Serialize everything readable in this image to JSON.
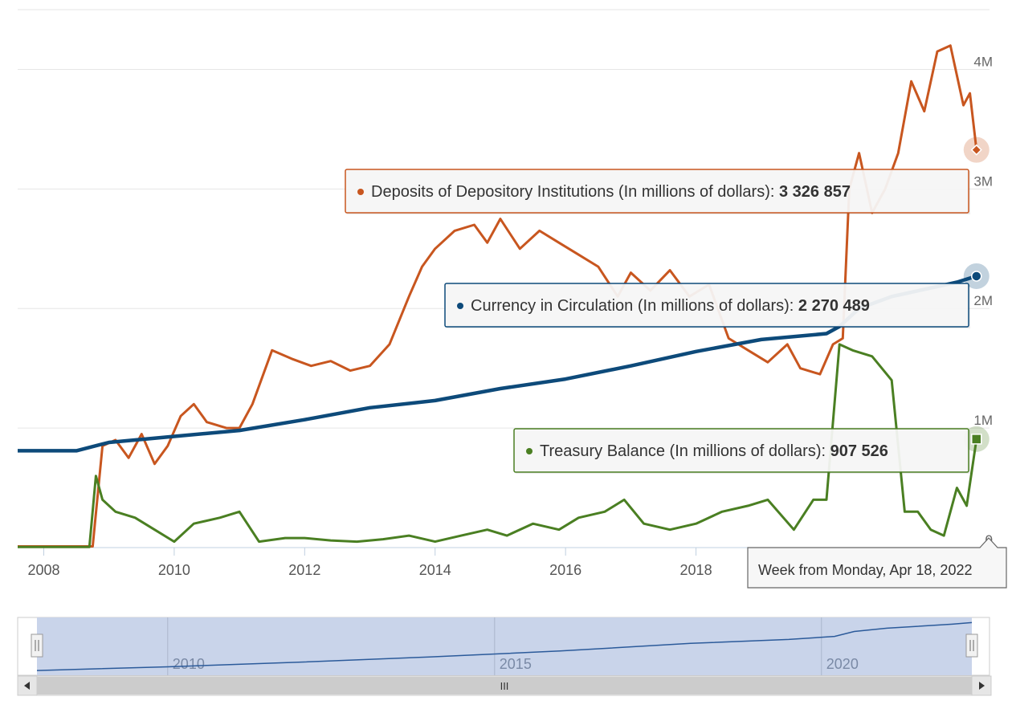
{
  "chart_data": {
    "type": "line",
    "title": "",
    "xlabel": "",
    "ylabel": "",
    "xlim": [
      2007.6,
      2022.5
    ],
    "ylim": [
      0,
      4500000
    ],
    "grid": true,
    "x_ticks": [
      "2008",
      "2010",
      "2012",
      "2014",
      "2016",
      "2018"
    ],
    "y_ticks": [
      {
        "value": 0,
        "label": "0"
      },
      {
        "value": 1000000,
        "label": "1M"
      },
      {
        "value": 2000000,
        "label": "2M"
      },
      {
        "value": 3000000,
        "label": "3M"
      },
      {
        "value": 4000000,
        "label": "4M"
      }
    ],
    "series": [
      {
        "name": "Deposits of Depository Institutions (In millions of dollars)",
        "color": "#c8561f",
        "marker": "diamond",
        "tooltip_value": "3 326 857",
        "x": [
          2007.6,
          2008.5,
          2008.75,
          2008.9,
          2009.1,
          2009.3,
          2009.5,
          2009.7,
          2009.9,
          2010.1,
          2010.3,
          2010.5,
          2010.8,
          2011.0,
          2011.2,
          2011.5,
          2011.8,
          2012.1,
          2012.4,
          2012.7,
          2013.0,
          2013.3,
          2013.6,
          2013.8,
          2014.0,
          2014.3,
          2014.6,
          2014.8,
          2015.0,
          2015.3,
          2015.6,
          2015.9,
          2016.2,
          2016.5,
          2016.8,
          2017.0,
          2017.3,
          2017.6,
          2017.9,
          2018.2,
          2018.5,
          2018.8,
          2019.1,
          2019.4,
          2019.6,
          2019.9,
          2020.1,
          2020.25,
          2020.35,
          2020.5,
          2020.7,
          2020.9,
          2021.1,
          2021.3,
          2021.5,
          2021.7,
          2021.9,
          2022.1,
          2022.2,
          2022.3
        ],
        "values": [
          10000,
          10000,
          10000,
          850000,
          900000,
          750000,
          950000,
          700000,
          850000,
          1100000,
          1200000,
          1050000,
          1000000,
          1000000,
          1200000,
          1650000,
          1580000,
          1520000,
          1560000,
          1480000,
          1520000,
          1700000,
          2100000,
          2350000,
          2500000,
          2650000,
          2700000,
          2550000,
          2750000,
          2500000,
          2650000,
          2550000,
          2450000,
          2350000,
          2100000,
          2300000,
          2150000,
          2320000,
          2100000,
          2200000,
          1750000,
          1650000,
          1550000,
          1700000,
          1500000,
          1450000,
          1700000,
          1750000,
          3000000,
          3300000,
          2800000,
          3000000,
          3300000,
          3900000,
          3650000,
          4150000,
          4200000,
          3700000,
          3800000,
          3326857
        ]
      },
      {
        "name": "Currency in Circulation (In millions of dollars)",
        "color": "#0d4a7a",
        "marker": "circle",
        "tooltip_value": "2 270 489",
        "x": [
          2007.6,
          2008.5,
          2009.0,
          2010.0,
          2011.0,
          2012.0,
          2013.0,
          2014.0,
          2015.0,
          2016.0,
          2017.0,
          2018.0,
          2019.0,
          2020.0,
          2020.2,
          2020.5,
          2021.0,
          2021.5,
          2022.0,
          2022.3
        ],
        "values": [
          810000,
          810000,
          880000,
          930000,
          980000,
          1070000,
          1170000,
          1230000,
          1330000,
          1410000,
          1520000,
          1640000,
          1740000,
          1790000,
          1850000,
          2000000,
          2100000,
          2160000,
          2220000,
          2270489
        ]
      },
      {
        "name": "Treasury Balance (In millions of dollars)",
        "color": "#4a7f22",
        "marker": "square",
        "tooltip_value": "907 526",
        "x": [
          2007.6,
          2008.7,
          2008.8,
          2008.9,
          2009.1,
          2009.4,
          2009.7,
          2010.0,
          2010.3,
          2010.7,
          2011.0,
          2011.3,
          2011.7,
          2012.0,
          2012.4,
          2012.8,
          2013.2,
          2013.6,
          2014.0,
          2014.4,
          2014.8,
          2015.1,
          2015.5,
          2015.9,
          2016.2,
          2016.6,
          2016.9,
          2017.2,
          2017.6,
          2018.0,
          2018.4,
          2018.8,
          2019.1,
          2019.5,
          2019.8,
          2020.0,
          2020.2,
          2020.4,
          2020.7,
          2021.0,
          2021.2,
          2021.4,
          2021.6,
          2021.8,
          2022.0,
          2022.15,
          2022.3
        ],
        "values": [
          5000,
          5000,
          600000,
          400000,
          300000,
          250000,
          150000,
          50000,
          200000,
          250000,
          300000,
          50000,
          80000,
          80000,
          60000,
          50000,
          70000,
          100000,
          50000,
          100000,
          150000,
          100000,
          200000,
          150000,
          250000,
          300000,
          400000,
          200000,
          150000,
          200000,
          300000,
          350000,
          400000,
          150000,
          400000,
          400000,
          1700000,
          1650000,
          1600000,
          1400000,
          300000,
          300000,
          150000,
          100000,
          500000,
          350000,
          907526
        ]
      }
    ],
    "tooltip_date": "Week from Monday, Apr 18, 2022",
    "navigator": {
      "tick_labels": [
        "2010",
        "2015",
        "2020"
      ],
      "x_ticks": [
        2010,
        2015,
        2020
      ],
      "xlim": [
        2008.0,
        2022.3
      ],
      "x": [
        2008.0,
        2010.0,
        2012.0,
        2014.0,
        2016.0,
        2018.0,
        2019.5,
        2020.2,
        2020.5,
        2021.0,
        2022.0,
        2022.3
      ],
      "values": [
        820000,
        930000,
        1070000,
        1230000,
        1410000,
        1640000,
        1760000,
        1850000,
        2000000,
        2100000,
        2220000,
        2270000
      ],
      "scrollbar_grip": "III"
    }
  }
}
